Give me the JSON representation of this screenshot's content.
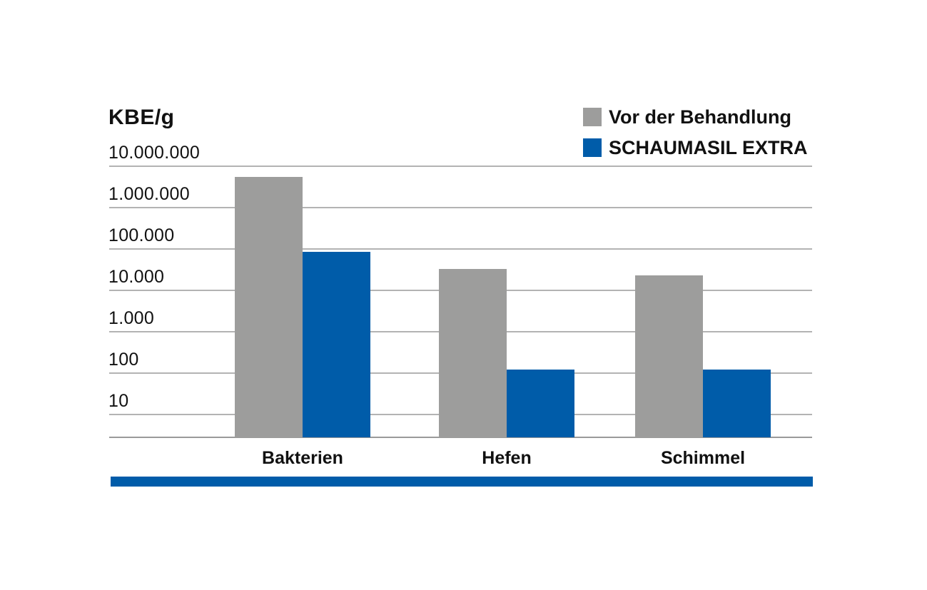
{
  "chart": {
    "title": "KBE/g",
    "accent_color": "#005ca9",
    "gridline_color": "#b3b3b3",
    "baseline_color": "#9a9a9a",
    "footer_bar_color": "#005ca9",
    "text_color": "#111111"
  },
  "chart_data": {
    "type": "bar",
    "title": "KBE/g",
    "ylabel": "KBE/g",
    "xlabel": "",
    "scale": "log",
    "grid": true,
    "legend_position": "top-right",
    "categories": [
      "Bakterien",
      "Hefen",
      "Schimmel"
    ],
    "series": [
      {
        "name": "Vor der Behandlung",
        "color": "#9d9d9c",
        "values": [
          5500000,
          33000,
          23000
        ]
      },
      {
        "name": "SCHAUMASIL EXTRA",
        "color": "#005ca9",
        "values": [
          85000,
          120,
          120
        ]
      }
    ],
    "y_ticks": [
      {
        "label": "10.000.000",
        "value": 10000000
      },
      {
        "label": "1.000.000",
        "value": 1000000
      },
      {
        "label": "100.000",
        "value": 100000
      },
      {
        "label": "10.000",
        "value": 10000
      },
      {
        "label": "1.000",
        "value": 1000
      },
      {
        "label": "100",
        "value": 100
      },
      {
        "label": "10",
        "value": 10
      }
    ],
    "ylim": [
      3,
      10000000
    ]
  }
}
